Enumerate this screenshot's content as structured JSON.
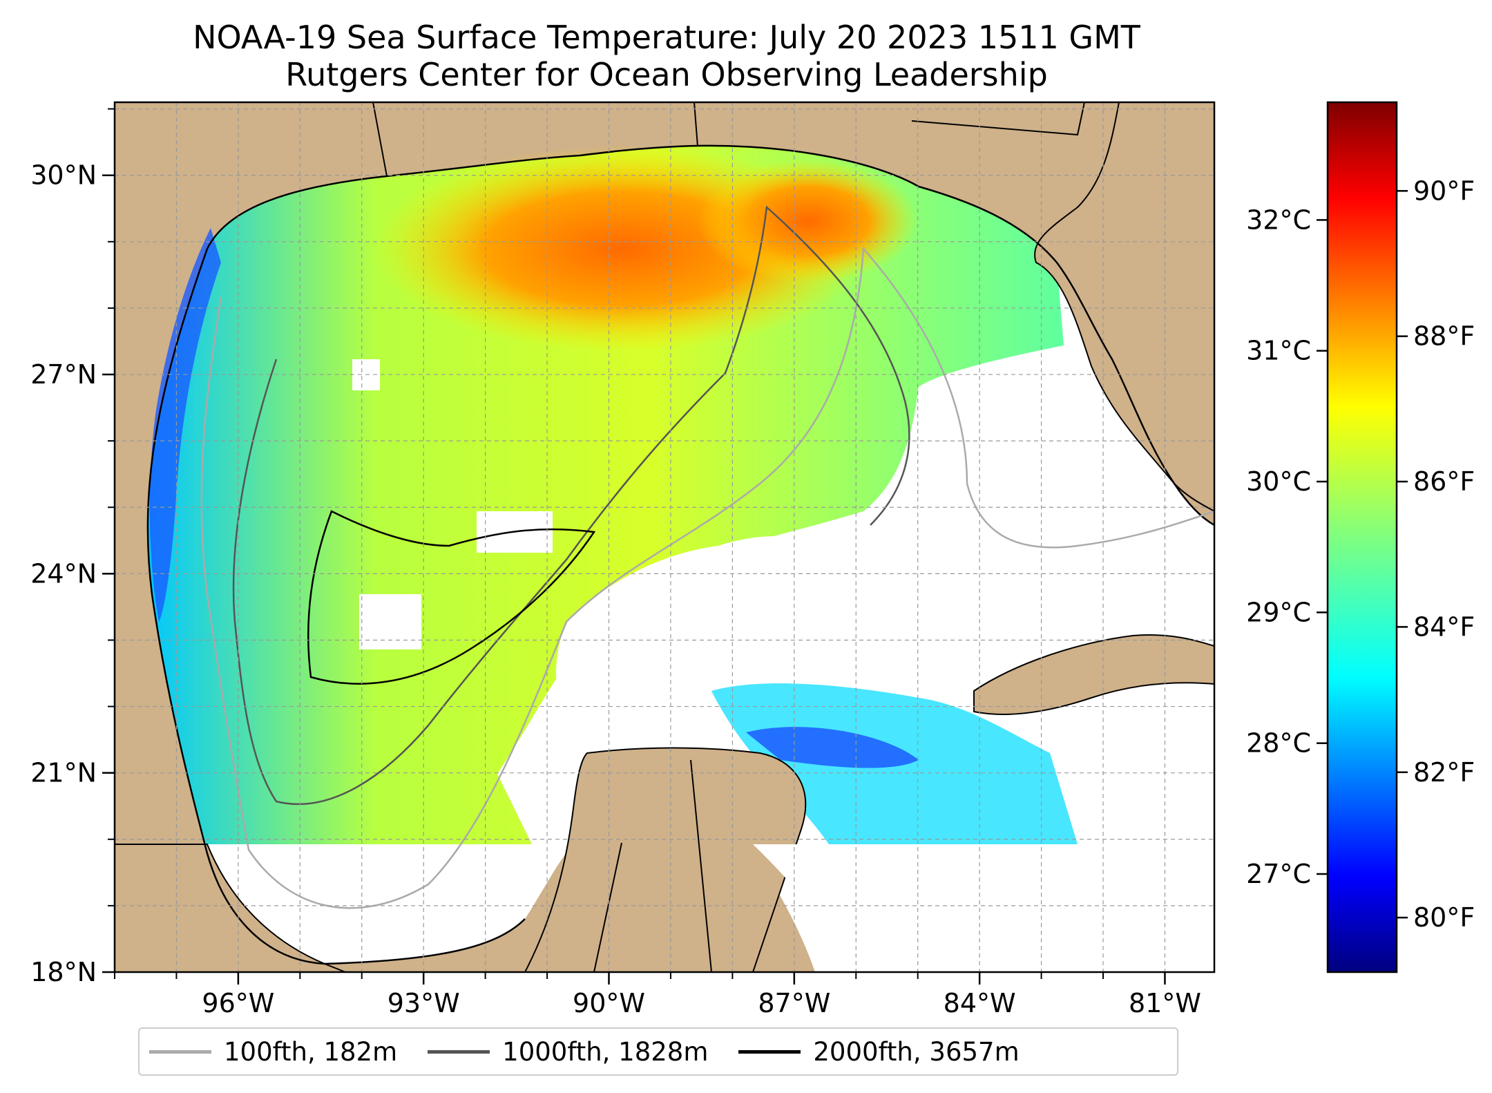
{
  "title": {
    "line1": "NOAA-19 Sea Surface Temperature: July 20 2023 1511 GMT",
    "line2": "Rutgers Center for Ocean Observing Leadership"
  },
  "map": {
    "extent": {
      "lon": [
        -98.0,
        -80.2
      ],
      "lat": [
        18.0,
        31.1
      ]
    },
    "lon_ticks": [
      {
        "value": -96,
        "label": "96°W"
      },
      {
        "value": -93,
        "label": "93°W"
      },
      {
        "value": -90,
        "label": "90°W"
      },
      {
        "value": -87,
        "label": "87°W"
      },
      {
        "value": -84,
        "label": "84°W"
      },
      {
        "value": -81,
        "label": "81°W"
      }
    ],
    "lat_ticks": [
      {
        "value": 30,
        "label": "30°N"
      },
      {
        "value": 27,
        "label": "27°N"
      },
      {
        "value": 24,
        "label": "24°N"
      },
      {
        "value": 21,
        "label": "21°N"
      },
      {
        "value": 18,
        "label": "18°N"
      }
    ],
    "grid": true,
    "land_color": "#cfb18a",
    "no_data_color": "#ffffff"
  },
  "colorbar": {
    "colormap": "jet",
    "celsius_range": [
      26.25,
      32.9
    ],
    "celsius_ticks": [
      {
        "value": 27,
        "label": "27°C"
      },
      {
        "value": 28,
        "label": "28°C"
      },
      {
        "value": 29,
        "label": "29°C"
      },
      {
        "value": 30,
        "label": "30°C"
      },
      {
        "value": 31,
        "label": "31°C"
      },
      {
        "value": 32,
        "label": "32°C"
      }
    ],
    "fahrenheit_ticks": [
      {
        "value": 80,
        "label": "80°F"
      },
      {
        "value": 82,
        "label": "82°F"
      },
      {
        "value": 84,
        "label": "84°F"
      },
      {
        "value": 86,
        "label": "86°F"
      },
      {
        "value": 88,
        "label": "88°F"
      },
      {
        "value": 90,
        "label": "90°F"
      }
    ]
  },
  "legend": {
    "placement": "bottom-center",
    "items": [
      {
        "label": "100fth, 182m",
        "color": "#aaaaaa"
      },
      {
        "label": "1000fth, 1828m",
        "color": "#555555"
      },
      {
        "label": "2000fth, 3657m",
        "color": "#000000"
      }
    ]
  }
}
